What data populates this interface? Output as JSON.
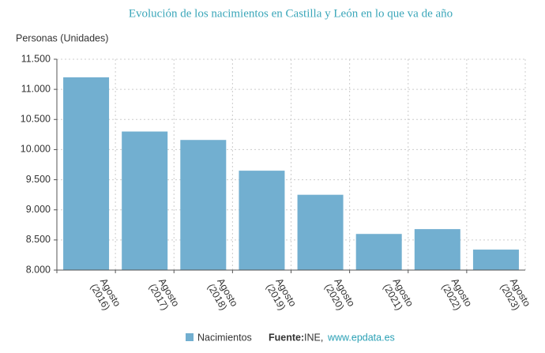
{
  "chart_data": {
    "type": "bar",
    "title": "Evolución de los nacimientos en Castilla y León en lo que va de año",
    "y_label": "Personas (Unidades)",
    "categories": [
      "Agosto (2016)",
      "Agosto (2017)",
      "Agosto (2018)",
      "Agosto (2019)",
      "Agosto (2020)",
      "Agosto (2021)",
      "Agosto (2022)",
      "Agosto (2023)"
    ],
    "series": [
      {
        "name": "Nacimientos",
        "color": "#72afd0",
        "values": [
          11200,
          10300,
          10160,
          9650,
          9250,
          8600,
          8680,
          8340
        ]
      }
    ],
    "ylim": [
      8000,
      11500
    ],
    "yticks": [
      {
        "value": 8000,
        "label": "8.000"
      },
      {
        "value": 8500,
        "label": "8.500"
      },
      {
        "value": 9000,
        "label": "9.000"
      },
      {
        "value": 9500,
        "label": "9.500"
      },
      {
        "value": 10000,
        "label": "10.000"
      },
      {
        "value": 10500,
        "label": "10.500"
      },
      {
        "value": 11000,
        "label": "11.000"
      },
      {
        "value": 11500,
        "label": "11.500"
      }
    ],
    "grid": true,
    "source": {
      "label": "Fuente:",
      "text": "INE,",
      "link": "www.epdata.es"
    }
  }
}
